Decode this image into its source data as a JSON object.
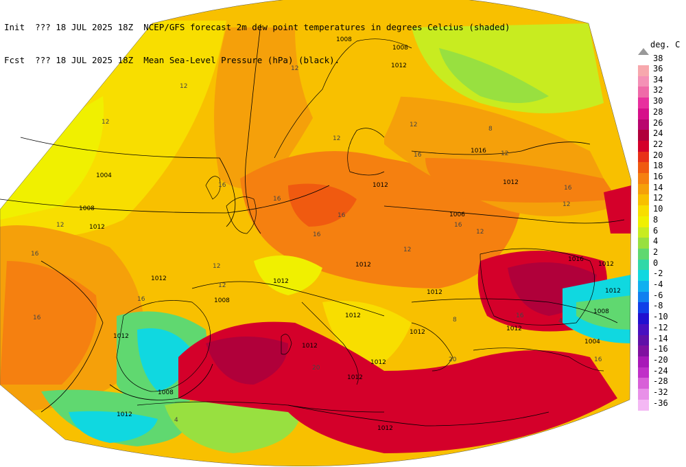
{
  "header": {
    "init_label": "Init",
    "init_value": "??? 18 JUL 2025 18Z",
    "fcst_label": "Fcst",
    "fcst_value": "??? 18 JUL 2025 18Z",
    "line1_desc": "NCEP/GFS forecast 2m dew point temperatures in degrees Celcius (shaded)",
    "line2_desc": "Mean Sea-Level Pressure (hPa) (black)."
  },
  "legend": {
    "title": "deg. C",
    "top_marker": "38",
    "levels": [
      {
        "label": "36",
        "color": "#f7a8ad"
      },
      {
        "label": "34",
        "color": "#f491b6"
      },
      {
        "label": "32",
        "color": "#ef6aa8"
      },
      {
        "label": "30",
        "color": "#e8309e"
      },
      {
        "label": "28",
        "color": "#d6108a"
      },
      {
        "label": "26",
        "color": "#b8056e"
      },
      {
        "label": "24",
        "color": "#b0003a"
      },
      {
        "label": "22",
        "color": "#d4002a"
      },
      {
        "label": "20",
        "color": "#e83018"
      },
      {
        "label": "18",
        "color": "#f05a10"
      },
      {
        "label": "16",
        "color": "#f58010"
      },
      {
        "label": "14",
        "color": "#f5a00a"
      },
      {
        "label": "12",
        "color": "#f8c000"
      },
      {
        "label": "10",
        "color": "#f8de00"
      },
      {
        "label": "8",
        "color": "#f0f000"
      },
      {
        "label": "6",
        "color": "#c8ec20"
      },
      {
        "label": "4",
        "color": "#98e040"
      },
      {
        "label": "2",
        "color": "#60d870"
      },
      {
        "label": "0",
        "color": "#30d8a8"
      },
      {
        "label": "-2",
        "color": "#10d8e0"
      },
      {
        "label": "-4",
        "color": "#10b0f0"
      },
      {
        "label": "-6",
        "color": "#1080f0"
      },
      {
        "label": "-8",
        "color": "#1040e8"
      },
      {
        "label": "-10",
        "color": "#2010d0"
      },
      {
        "label": "-12",
        "color": "#4810c0"
      },
      {
        "label": "-14",
        "color": "#6010a8"
      },
      {
        "label": "-16",
        "color": "#8010a0"
      },
      {
        "label": "-20",
        "color": "#a818b8"
      },
      {
        "label": "-24",
        "color": "#c030c8"
      },
      {
        "label": "-28",
        "color": "#d860d8"
      },
      {
        "label": "-32",
        "color": "#e890e8"
      },
      {
        "label": "-36",
        "color": "#f4b8f4"
      }
    ]
  },
  "isobar_labels": [
    "1008",
    "1012",
    "1004",
    "1008",
    "1012",
    "1012",
    "1016",
    "1012",
    "1008",
    "1012",
    "1012",
    "1012",
    "1006",
    "1012",
    "1008",
    "1012",
    "1012",
    "1012",
    "1016",
    "1012",
    "1012",
    "1008",
    "1004",
    "1012",
    "1012",
    "1012",
    "1012",
    "1008",
    "1012",
    "1012"
  ],
  "dewpoint_labels": [
    "12",
    "12",
    "12",
    "12",
    "16",
    "16",
    "16",
    "16",
    "12",
    "12",
    "8",
    "12",
    "16",
    "16",
    "16",
    "16",
    "12",
    "12",
    "16",
    "12",
    "20",
    "20",
    "16",
    "8",
    "4",
    "12",
    "16",
    "12",
    "16",
    "4"
  ]
}
